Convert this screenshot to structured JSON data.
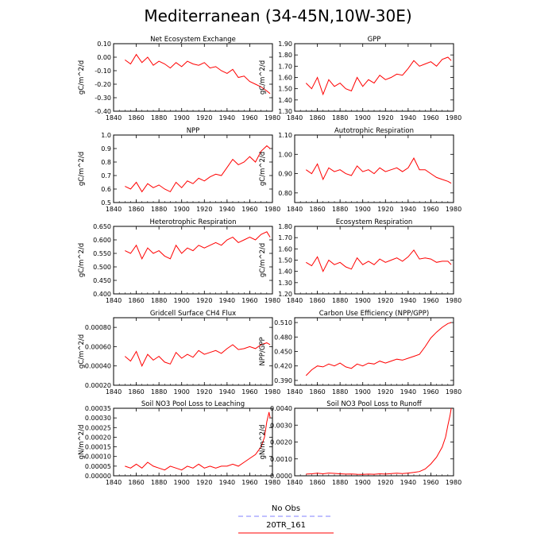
{
  "title": "Mediterranean (34-45N,10W-30E)",
  "legend": [
    {
      "label": "No Obs",
      "color": "#8080ff",
      "dash": true
    },
    {
      "label": "20TR_161",
      "color": "#ff0000",
      "dash": false
    }
  ],
  "chart_data": [
    {
      "type": "line",
      "title": "Net Ecosystem Exchange",
      "ylabel": "gC/m^2/d",
      "xlim": [
        1840,
        1980
      ],
      "ylim": [
        -0.4,
        0.1
      ],
      "yticks": [
        "-0.40",
        "-0.30",
        "-0.20",
        "-0.10",
        "0.00",
        "0.10"
      ],
      "xticks": [
        "1840",
        "1860",
        "1880",
        "1900",
        "1920",
        "1940",
        "1960",
        "1980"
      ],
      "series": [
        {
          "x": [
            1850,
            1855,
            1860,
            1865,
            1870,
            1875,
            1880,
            1885,
            1890,
            1895,
            1900,
            1905,
            1910,
            1915,
            1920,
            1925,
            1930,
            1935,
            1940,
            1945,
            1950,
            1955,
            1960,
            1965,
            1970,
            1975,
            1978
          ],
          "values": [
            -0.02,
            -0.05,
            0.02,
            -0.04,
            0.0,
            -0.06,
            -0.03,
            -0.05,
            -0.08,
            -0.04,
            -0.07,
            -0.03,
            -0.05,
            -0.06,
            -0.04,
            -0.08,
            -0.07,
            -0.1,
            -0.12,
            -0.09,
            -0.15,
            -0.14,
            -0.18,
            -0.2,
            -0.22,
            -0.25,
            -0.27
          ]
        }
      ]
    },
    {
      "type": "line",
      "title": "GPP",
      "ylabel": "gC/m^2/d",
      "xlim": [
        1840,
        1980
      ],
      "ylim": [
        1.3,
        1.9
      ],
      "yticks": [
        "1.30",
        "1.40",
        "1.50",
        "1.60",
        "1.70",
        "1.80",
        "1.90"
      ],
      "xticks": [
        "1840",
        "1860",
        "1880",
        "1900",
        "1920",
        "1940",
        "1960",
        "1980"
      ],
      "series": [
        {
          "x": [
            1850,
            1855,
            1860,
            1865,
            1870,
            1875,
            1880,
            1885,
            1890,
            1895,
            1900,
            1905,
            1910,
            1915,
            1920,
            1925,
            1930,
            1935,
            1940,
            1945,
            1950,
            1955,
            1960,
            1965,
            1970,
            1975,
            1978
          ],
          "values": [
            1.55,
            1.5,
            1.6,
            1.45,
            1.58,
            1.52,
            1.55,
            1.5,
            1.48,
            1.6,
            1.52,
            1.58,
            1.55,
            1.62,
            1.58,
            1.6,
            1.63,
            1.62,
            1.68,
            1.75,
            1.7,
            1.72,
            1.74,
            1.7,
            1.76,
            1.78,
            1.75
          ]
        }
      ]
    },
    {
      "type": "line",
      "title": "NPP",
      "ylabel": "gC/m^2/d",
      "xlim": [
        1840,
        1980
      ],
      "ylim": [
        0.5,
        1.0
      ],
      "yticks": [
        "0.5",
        "0.6",
        "0.7",
        "0.8",
        "0.9",
        "1.0"
      ],
      "xticks": [
        "1840",
        "1860",
        "1880",
        "1900",
        "1920",
        "1940",
        "1960",
        "1980"
      ],
      "series": [
        {
          "x": [
            1850,
            1855,
            1860,
            1865,
            1870,
            1875,
            1880,
            1885,
            1890,
            1895,
            1900,
            1905,
            1910,
            1915,
            1920,
            1925,
            1930,
            1935,
            1940,
            1945,
            1950,
            1955,
            1960,
            1965,
            1970,
            1975,
            1978
          ],
          "values": [
            0.62,
            0.6,
            0.65,
            0.58,
            0.64,
            0.61,
            0.63,
            0.6,
            0.58,
            0.65,
            0.61,
            0.66,
            0.64,
            0.68,
            0.66,
            0.69,
            0.71,
            0.7,
            0.76,
            0.82,
            0.78,
            0.8,
            0.84,
            0.8,
            0.88,
            0.92,
            0.9
          ]
        }
      ]
    },
    {
      "type": "line",
      "title": "Autotrophic Respiration",
      "ylabel": "gC/m^2/d",
      "xlim": [
        1840,
        1980
      ],
      "ylim": [
        0.75,
        1.1
      ],
      "yticks": [
        "0.80",
        "0.90",
        "1.00",
        "1.10"
      ],
      "xticks": [
        "1840",
        "1860",
        "1880",
        "1900",
        "1920",
        "1940",
        "1960",
        "1980"
      ],
      "series": [
        {
          "x": [
            1850,
            1855,
            1860,
            1865,
            1870,
            1875,
            1880,
            1885,
            1890,
            1895,
            1900,
            1905,
            1910,
            1915,
            1920,
            1925,
            1930,
            1935,
            1940,
            1945,
            1950,
            1955,
            1960,
            1965,
            1970,
            1975,
            1978
          ],
          "values": [
            0.92,
            0.9,
            0.95,
            0.87,
            0.93,
            0.91,
            0.92,
            0.9,
            0.89,
            0.94,
            0.91,
            0.92,
            0.9,
            0.93,
            0.91,
            0.92,
            0.93,
            0.91,
            0.93,
            0.98,
            0.92,
            0.92,
            0.9,
            0.88,
            0.87,
            0.86,
            0.85
          ]
        }
      ]
    },
    {
      "type": "line",
      "title": "Heterotrophic Respiration",
      "ylabel": "gC/m^2/d",
      "xlim": [
        1840,
        1980
      ],
      "ylim": [
        0.4,
        0.65
      ],
      "yticks": [
        "0.400",
        "0.450",
        "0.500",
        "0.550",
        "0.600",
        "0.650"
      ],
      "xticks": [
        "1840",
        "1860",
        "1880",
        "1900",
        "1920",
        "1940",
        "1960",
        "1980"
      ],
      "series": [
        {
          "x": [
            1850,
            1855,
            1860,
            1865,
            1870,
            1875,
            1880,
            1885,
            1890,
            1895,
            1900,
            1905,
            1910,
            1915,
            1920,
            1925,
            1930,
            1935,
            1940,
            1945,
            1950,
            1955,
            1960,
            1965,
            1970,
            1975,
            1978
          ],
          "values": [
            0.56,
            0.55,
            0.58,
            0.53,
            0.57,
            0.55,
            0.56,
            0.54,
            0.53,
            0.58,
            0.55,
            0.57,
            0.56,
            0.58,
            0.57,
            0.58,
            0.59,
            0.58,
            0.6,
            0.61,
            0.59,
            0.6,
            0.61,
            0.6,
            0.62,
            0.63,
            0.61
          ]
        }
      ]
    },
    {
      "type": "line",
      "title": "Ecosystem Respiration",
      "ylabel": "gC/m^2/d",
      "xlim": [
        1840,
        1980
      ],
      "ylim": [
        1.2,
        1.8
      ],
      "yticks": [
        "1.20",
        "1.30",
        "1.40",
        "1.50",
        "1.60",
        "1.70",
        "1.80"
      ],
      "xticks": [
        "1840",
        "1860",
        "1880",
        "1900",
        "1920",
        "1940",
        "1960",
        "1980"
      ],
      "series": [
        {
          "x": [
            1850,
            1855,
            1860,
            1865,
            1870,
            1875,
            1880,
            1885,
            1890,
            1895,
            1900,
            1905,
            1910,
            1915,
            1920,
            1925,
            1930,
            1935,
            1940,
            1945,
            1950,
            1955,
            1960,
            1965,
            1970,
            1975,
            1978
          ],
          "values": [
            1.48,
            1.45,
            1.53,
            1.4,
            1.5,
            1.46,
            1.48,
            1.44,
            1.42,
            1.52,
            1.46,
            1.49,
            1.46,
            1.51,
            1.48,
            1.5,
            1.52,
            1.49,
            1.53,
            1.59,
            1.51,
            1.52,
            1.51,
            1.48,
            1.49,
            1.49,
            1.46
          ]
        }
      ]
    },
    {
      "type": "line",
      "title": "Gridcell Surface CH4 Flux",
      "ylabel": "gC/m^2/d",
      "xlim": [
        1840,
        1980
      ],
      "ylim": [
        0.0002,
        0.0009
      ],
      "yticks": [
        "0.00020",
        "0.00040",
        "0.00060",
        "0.00080"
      ],
      "xticks": [
        "1840",
        "1860",
        "1880",
        "1900",
        "1920",
        "1940",
        "1960",
        "1980"
      ],
      "series": [
        {
          "x": [
            1850,
            1855,
            1860,
            1865,
            1870,
            1875,
            1880,
            1885,
            1890,
            1895,
            1900,
            1905,
            1910,
            1915,
            1920,
            1925,
            1930,
            1935,
            1940,
            1945,
            1950,
            1955,
            1960,
            1965,
            1970,
            1975,
            1978
          ],
          "values": [
            0.0005,
            0.00045,
            0.00055,
            0.0004,
            0.00052,
            0.00046,
            0.0005,
            0.00044,
            0.00042,
            0.00054,
            0.00048,
            0.00052,
            0.00049,
            0.00056,
            0.00052,
            0.00054,
            0.00056,
            0.00053,
            0.00058,
            0.00062,
            0.00057,
            0.00058,
            0.0006,
            0.00058,
            0.00062,
            0.00064,
            0.00062
          ]
        }
      ]
    },
    {
      "type": "line",
      "title": "Carbon Use Efficiency (NPP/GPP)",
      "ylabel": "NPP/GPP",
      "xlim": [
        1840,
        1980
      ],
      "ylim": [
        0.38,
        0.52
      ],
      "yticks": [
        "0.390",
        "0.420",
        "0.450",
        "0.480",
        "0.510"
      ],
      "xticks": [
        "1840",
        "1860",
        "1880",
        "1900",
        "1920",
        "1940",
        "1960",
        "1980"
      ],
      "series": [
        {
          "x": [
            1850,
            1855,
            1860,
            1865,
            1870,
            1875,
            1880,
            1885,
            1890,
            1895,
            1900,
            1905,
            1910,
            1915,
            1920,
            1925,
            1930,
            1935,
            1940,
            1945,
            1950,
            1955,
            1960,
            1965,
            1970,
            1975,
            1978
          ],
          "values": [
            0.4,
            0.412,
            0.42,
            0.418,
            0.424,
            0.42,
            0.426,
            0.418,
            0.415,
            0.424,
            0.42,
            0.426,
            0.424,
            0.43,
            0.426,
            0.43,
            0.434,
            0.432,
            0.436,
            0.44,
            0.444,
            0.46,
            0.478,
            0.49,
            0.5,
            0.508,
            0.51
          ]
        }
      ]
    },
    {
      "type": "line",
      "title": "Soil NO3 Pool Loss to Leaching",
      "ylabel": "gN/m^2/d",
      "xlim": [
        1840,
        1980
      ],
      "ylim": [
        0.0,
        0.00035
      ],
      "yticks": [
        "0.00000",
        "0.00005",
        "0.00010",
        "0.00015",
        "0.00020",
        "0.00025",
        "0.00030",
        "0.00035"
      ],
      "xticks": [
        "1840",
        "1860",
        "1880",
        "1900",
        "1920",
        "1940",
        "1960",
        "1980"
      ],
      "series": [
        {
          "x": [
            1850,
            1855,
            1860,
            1865,
            1870,
            1875,
            1880,
            1885,
            1890,
            1895,
            1900,
            1905,
            1910,
            1915,
            1920,
            1925,
            1930,
            1935,
            1940,
            1945,
            1950,
            1955,
            1960,
            1965,
            1970,
            1973,
            1975,
            1977,
            1978
          ],
          "values": [
            5e-05,
            4e-05,
            6e-05,
            4e-05,
            7e-05,
            5e-05,
            4e-05,
            3e-05,
            5e-05,
            4e-05,
            3e-05,
            5e-05,
            4e-05,
            6e-05,
            4e-05,
            5e-05,
            4e-05,
            5e-05,
            5e-05,
            6e-05,
            5e-05,
            7e-05,
            9e-05,
            0.00011,
            0.00015,
            0.0002,
            0.00028,
            0.00033,
            0.0003
          ]
        }
      ]
    },
    {
      "type": "line",
      "title": "Soil NO3 Pool Loss to Runoff",
      "ylabel": "gN/m^2/d",
      "xlim": [
        1840,
        1980
      ],
      "ylim": [
        0.0,
        0.004
      ],
      "yticks": [
        "0.0000",
        "0.0010",
        "0.0020",
        "0.0030",
        "0.0040"
      ],
      "xticks": [
        "1840",
        "1860",
        "1880",
        "1900",
        "1920",
        "1940",
        "1960",
        "1980"
      ],
      "series": [
        {
          "x": [
            1850,
            1855,
            1860,
            1865,
            1870,
            1875,
            1880,
            1885,
            1890,
            1895,
            1900,
            1905,
            1910,
            1915,
            1920,
            1925,
            1930,
            1935,
            1940,
            1945,
            1950,
            1955,
            1960,
            1965,
            1970,
            1973,
            1975,
            1977,
            1978
          ],
          "values": [
            0.0001,
            0.00012,
            0.00015,
            0.00012,
            0.00016,
            0.00014,
            0.00012,
            0.0001,
            0.00011,
            9e-05,
            8e-05,
            0.0001,
            9e-05,
            0.00012,
            0.0001,
            0.00013,
            0.00015,
            0.00013,
            0.00016,
            0.0002,
            0.00025,
            0.0004,
            0.0007,
            0.0011,
            0.0017,
            0.0023,
            0.003,
            0.0036,
            0.004
          ]
        }
      ]
    }
  ]
}
